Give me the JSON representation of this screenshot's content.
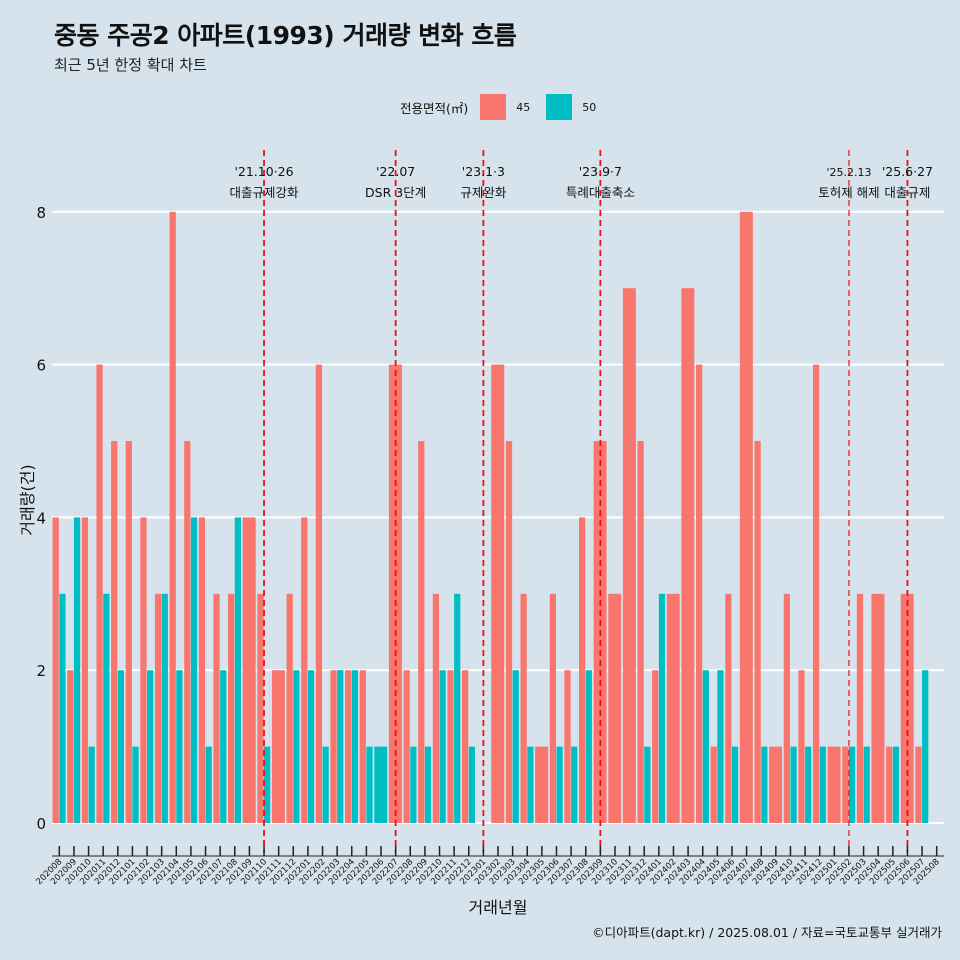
{
  "chart_data": {
    "type": "bar",
    "title": "중동 주공2 아파트(1993) 거래량 변화 흐름",
    "subtitle": "최근 5년 한정 확대 차트",
    "xlabel": "거래년월",
    "ylabel": "거래량(건)",
    "ylim": [
      -0.35,
      8.9
    ],
    "yticks": [
      0,
      2,
      4,
      6,
      8
    ],
    "grid": "horizontal",
    "legend": {
      "title": "전용면적(㎡)",
      "position": "top",
      "entries": [
        {
          "name": "45",
          "color": "#f8766d"
        },
        {
          "name": "50",
          "color": "#00bfc4"
        }
      ]
    },
    "categories": [
      "202008",
      "202009",
      "202010",
      "202011",
      "202012",
      "202101",
      "202102",
      "202103",
      "202104",
      "202105",
      "202106",
      "202107",
      "202108",
      "202109",
      "202110",
      "202111",
      "202112",
      "202201",
      "202202",
      "202203",
      "202204",
      "202205",
      "202206",
      "202207",
      "202208",
      "202209",
      "202210",
      "202211",
      "202212",
      "202301",
      "202302",
      "202303",
      "202304",
      "202305",
      "202306",
      "202307",
      "202308",
      "202309",
      "202310",
      "202311",
      "202312",
      "202401",
      "202402",
      "202403",
      "202404",
      "202405",
      "202406",
      "202407",
      "202408",
      "202409",
      "202410",
      "202411",
      "202412",
      "202501",
      "202502",
      "202503",
      "202504",
      "202505",
      "202506",
      "202507",
      "202508"
    ],
    "series": [
      {
        "name": "45",
        "color": "#f8766d",
        "values": [
          4,
          2,
          4,
          6,
          5,
          5,
          4,
          3,
          8,
          5,
          4,
          3,
          3,
          4,
          3,
          2,
          3,
          4,
          6,
          2,
          2,
          2,
          null,
          6,
          2,
          5,
          3,
          2,
          2,
          null,
          6,
          5,
          3,
          1,
          3,
          2,
          4,
          5,
          3,
          7,
          5,
          2,
          3,
          7,
          6,
          1,
          3,
          8,
          5,
          1,
          3,
          2,
          6,
          1,
          1,
          3,
          3,
          1,
          3,
          1,
          null
        ]
      },
      {
        "name": "50",
        "color": "#00bfc4",
        "values": [
          3,
          4,
          1,
          3,
          2,
          1,
          2,
          3,
          2,
          4,
          1,
          2,
          4,
          null,
          1,
          null,
          2,
          2,
          1,
          2,
          2,
          1,
          1,
          null,
          1,
          1,
          2,
          3,
          1,
          null,
          null,
          2,
          1,
          null,
          1,
          1,
          2,
          null,
          null,
          null,
          1,
          3,
          null,
          null,
          2,
          2,
          1,
          null,
          1,
          null,
          1,
          1,
          1,
          null,
          1,
          1,
          null,
          1,
          null,
          2,
          null
        ]
      }
    ],
    "annotations": [
      {
        "x_index": 14,
        "date": "'21.10·26",
        "label": "대출규제강화",
        "style": "dashed",
        "small": false
      },
      {
        "x_index": 23,
        "date": "'22.07",
        "label": "DSR 3단계",
        "style": "dashed",
        "small": false
      },
      {
        "x_index": 29,
        "date": "'23.1·3",
        "label": "규제완화",
        "style": "dashed",
        "small": false
      },
      {
        "x_index": 37,
        "date": "'23.9·7",
        "label": "특례대출축소",
        "style": "dashed",
        "small": false
      },
      {
        "x_index": 54,
        "date": "'25.2.13",
        "label": "토허제 해제",
        "style": "dashed-thin",
        "small": true
      },
      {
        "x_index": 58,
        "date": "'25.6·27",
        "label": "대출규제",
        "style": "dashed",
        "small": false
      }
    ]
  },
  "caption": "©디아파트(dapt.kr) / 2025.08.01 / 자료=국토교통부 실거래가"
}
